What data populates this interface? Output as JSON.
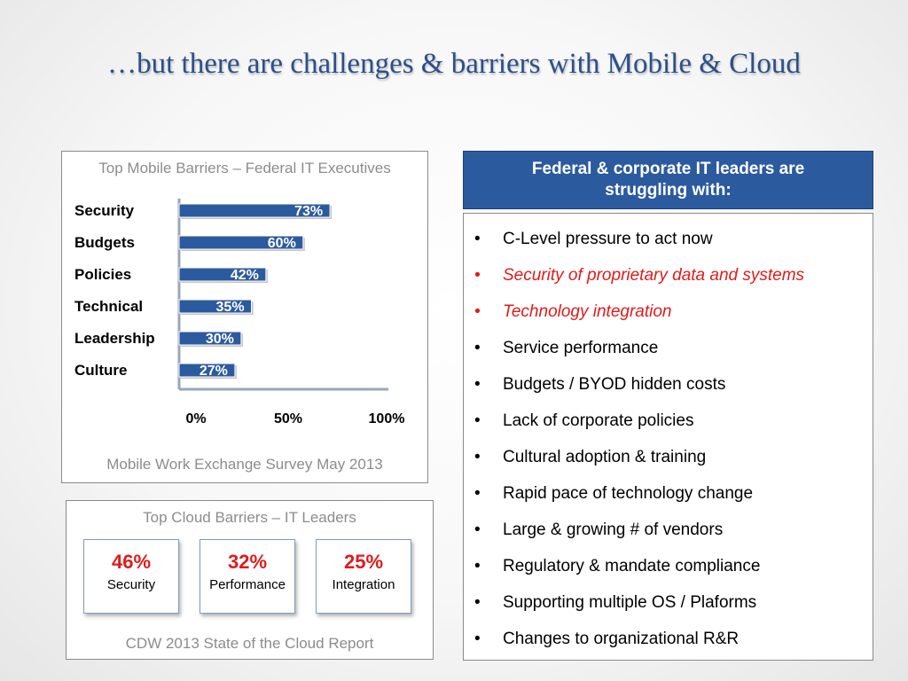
{
  "title": "…but there are challenges & barriers with Mobile & Cloud",
  "mobile_panel": {
    "heading": "Top Mobile Barriers – Federal IT Executives",
    "source": "Mobile Work Exchange Survey May 2013"
  },
  "chart_data": {
    "type": "bar",
    "orientation": "horizontal",
    "title": "Top Mobile Barriers – Federal IT Executives",
    "categories": [
      "Security",
      "Budgets",
      "Policies",
      "Technical",
      "Leadership",
      "Culture"
    ],
    "values": [
      73,
      60,
      42,
      35,
      30,
      27
    ],
    "value_labels": [
      "73%",
      "60%",
      "42%",
      "35%",
      "30%",
      "27%"
    ],
    "x_ticks": [
      "0%",
      "50%",
      "100%"
    ],
    "xlim": [
      0,
      100
    ],
    "grid": false,
    "bar_color": "#2c5a9e"
  },
  "cloud_panel": {
    "heading": "Top Cloud Barriers – IT Leaders",
    "source": "CDW 2013 State of the Cloud Report",
    "stats": [
      {
        "pct": "46%",
        "name": "Security"
      },
      {
        "pct": "32%",
        "name": "Performance"
      },
      {
        "pct": "25%",
        "name": "Integration"
      }
    ]
  },
  "right_panel": {
    "header": "Federal & corporate IT leaders are struggling with:",
    "bullet": "•",
    "items": [
      {
        "text": "C-Level pressure to act now",
        "emphasis": false
      },
      {
        "text": "Security of proprietary data and systems",
        "emphasis": true
      },
      {
        "text": "Technology integration",
        "emphasis": true
      },
      {
        "text": "Service performance",
        "emphasis": false
      },
      {
        "text": "Budgets / BYOD  hidden costs",
        "emphasis": false
      },
      {
        "text": "Lack of corporate policies",
        "emphasis": false
      },
      {
        "text": "Cultural adoption & training",
        "emphasis": false
      },
      {
        "text": "Rapid pace of technology change",
        "emphasis": false
      },
      {
        "text": "Large & growing # of vendors",
        "emphasis": false
      },
      {
        "text": "Regulatory & mandate compliance",
        "emphasis": false
      },
      {
        "text": "Supporting multiple OS / Plaforms",
        "emphasis": false
      },
      {
        "text": "Changes to organizational R&R",
        "emphasis": false
      }
    ]
  },
  "colors": {
    "title": "#2b4f8a",
    "accent": "#2c5a9e",
    "highlight": "#e01b1b",
    "caption": "#8c8c8c"
  }
}
